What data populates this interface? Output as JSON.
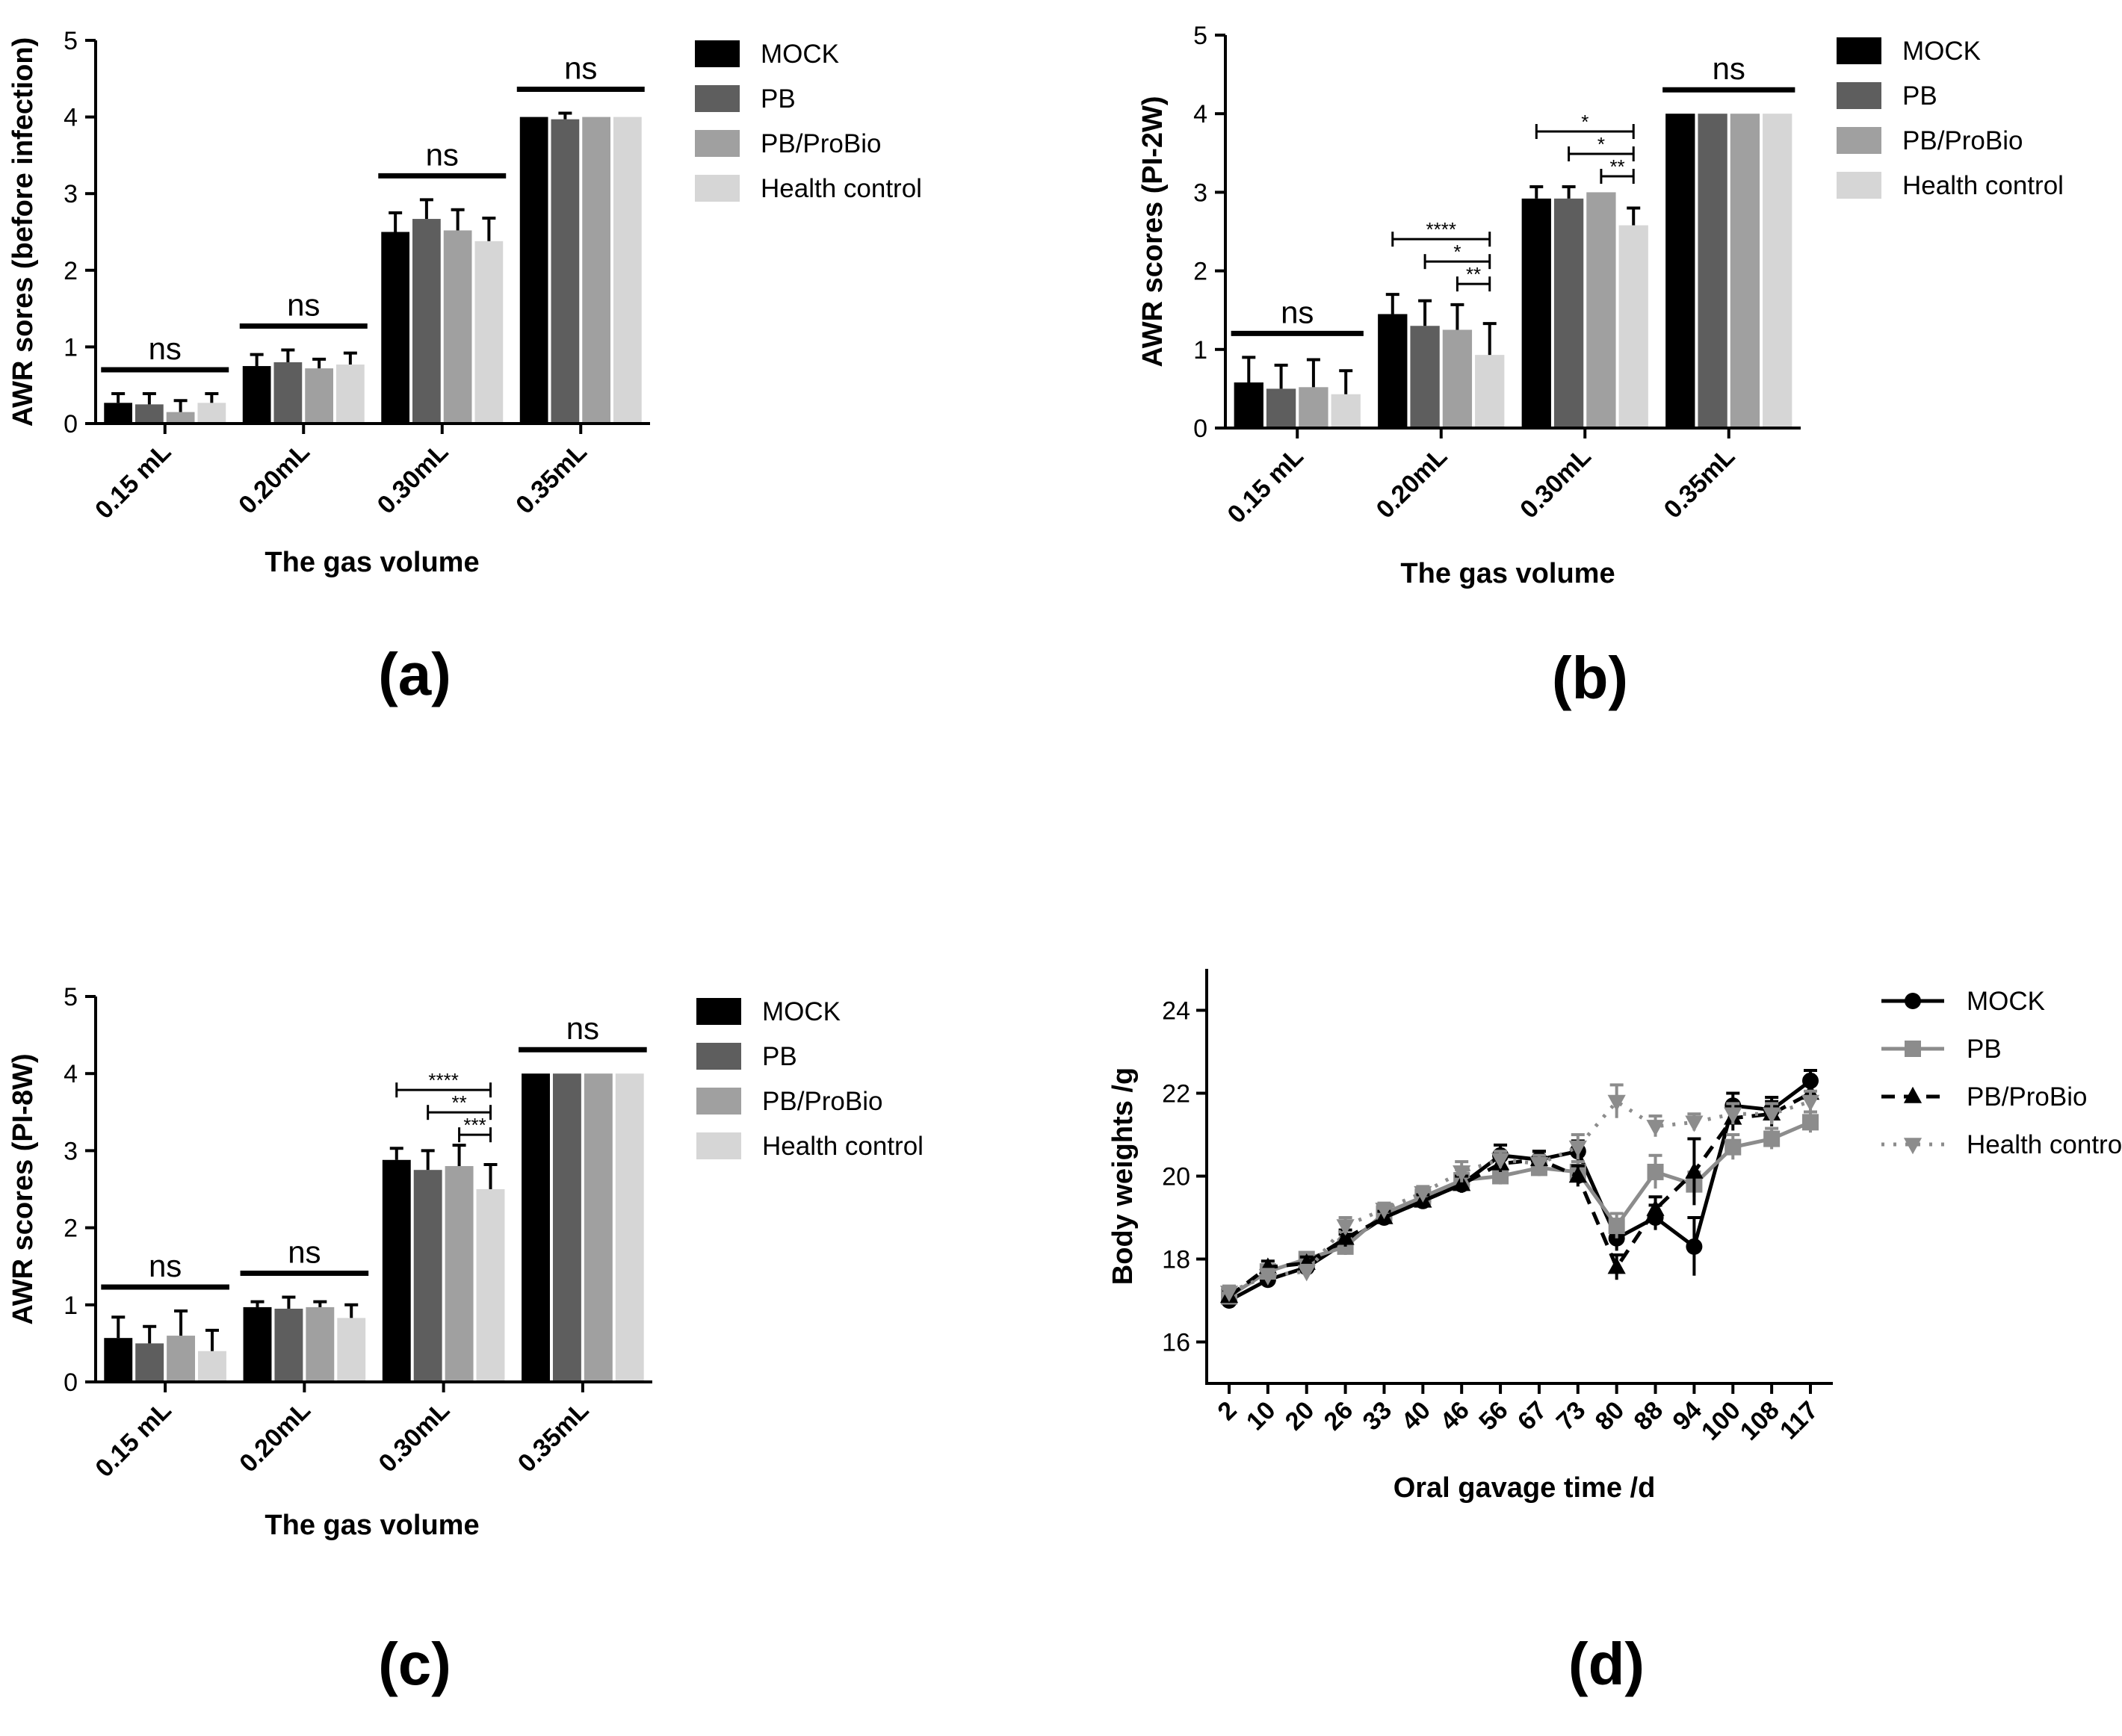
{
  "chart_data": [
    {
      "type": "bar",
      "panel_label": "(a)",
      "categories": [
        "0.15 mL",
        "0.20mL",
        "0.30mL",
        "0.35mL"
      ],
      "xlabel": "The gas volume",
      "ylabel": "AWR sores (before infection)",
      "ylim": [
        0,
        5
      ],
      "yticks": [
        "0",
        "1",
        "2",
        "3",
        "4",
        "5"
      ],
      "legend_position": "right",
      "series": [
        {
          "name": "MOCK",
          "color": "#000000",
          "values": [
            0.27,
            0.75,
            2.5,
            4.0
          ],
          "errors": [
            0.12,
            0.15,
            0.25,
            0.0
          ]
        },
        {
          "name": "PB",
          "color": "#5e5e5e",
          "values": [
            0.25,
            0.8,
            2.67,
            3.97
          ],
          "errors": [
            0.14,
            0.16,
            0.25,
            0.08
          ]
        },
        {
          "name": "PB/ProBio",
          "color": "#a0a0a0",
          "values": [
            0.15,
            0.72,
            2.52,
            4.0
          ],
          "errors": [
            0.15,
            0.12,
            0.27,
            0.0
          ]
        },
        {
          "name": "Health control",
          "color": "#d6d6d6",
          "values": [
            0.27,
            0.77,
            2.38,
            4.0
          ],
          "errors": [
            0.12,
            0.15,
            0.3,
            0.0
          ]
        }
      ],
      "annotations": [
        {
          "text": "ns",
          "group": 0
        },
        {
          "text": "ns",
          "group": 1
        },
        {
          "text": "ns",
          "group": 2
        },
        {
          "text": "ns",
          "group": 3
        }
      ]
    },
    {
      "type": "bar",
      "panel_label": "(b)",
      "categories": [
        "0.15 mL",
        "0.20mL",
        "0.30mL",
        "0.35mL"
      ],
      "xlabel": "The gas volume",
      "ylabel": "AWR scores (PI-2W)",
      "ylim": [
        0,
        5
      ],
      "yticks": [
        "0",
        "1",
        "2",
        "3",
        "4",
        "5"
      ],
      "legend_position": "right",
      "series": [
        {
          "name": "MOCK",
          "color": "#000000",
          "values": [
            0.58,
            1.45,
            2.92,
            4.0
          ],
          "errors": [
            0.32,
            0.25,
            0.15,
            0.0
          ]
        },
        {
          "name": "PB",
          "color": "#5e5e5e",
          "values": [
            0.5,
            1.3,
            2.92,
            4.0
          ],
          "errors": [
            0.3,
            0.32,
            0.15,
            0.0
          ]
        },
        {
          "name": "PB/ProBio",
          "color": "#a0a0a0",
          "values": [
            0.52,
            1.25,
            3.0,
            4.0
          ],
          "errors": [
            0.35,
            0.32,
            0.0,
            0.0
          ]
        },
        {
          "name": "Health control",
          "color": "#d6d6d6",
          "values": [
            0.43,
            0.93,
            2.58,
            4.0
          ],
          "errors": [
            0.3,
            0.4,
            0.22,
            0.0
          ]
        }
      ],
      "annotations": [
        {
          "text": "ns",
          "group": 0
        },
        {
          "text": "****",
          "group": 1,
          "from_series": 0,
          "to_series": 3
        },
        {
          "text": "*",
          "group": 1,
          "from_series": 1,
          "to_series": 3
        },
        {
          "text": "**",
          "group": 1,
          "from_series": 2,
          "to_series": 3
        },
        {
          "text": "*",
          "group": 2,
          "from_series": 0,
          "to_series": 3
        },
        {
          "text": "*",
          "group": 2,
          "from_series": 1,
          "to_series": 3
        },
        {
          "text": "**",
          "group": 2,
          "from_series": 2,
          "to_series": 3
        },
        {
          "text": "ns",
          "group": 3
        }
      ]
    },
    {
      "type": "bar",
      "panel_label": "(c)",
      "categories": [
        "0.15 mL",
        "0.20mL",
        "0.30mL",
        "0.35mL"
      ],
      "xlabel": "The gas volume",
      "ylabel": "AWR scores (PI-8W)",
      "ylim": [
        0,
        5
      ],
      "yticks": [
        "0",
        "1",
        "2",
        "3",
        "4",
        "5"
      ],
      "legend_position": "right",
      "series": [
        {
          "name": "MOCK",
          "color": "#000000",
          "values": [
            0.57,
            0.97,
            2.88,
            4.0
          ],
          "errors": [
            0.27,
            0.07,
            0.15,
            0.0
          ]
        },
        {
          "name": "PB",
          "color": "#5e5e5e",
          "values": [
            0.5,
            0.95,
            2.75,
            4.0
          ],
          "errors": [
            0.22,
            0.15,
            0.25,
            0.0
          ]
        },
        {
          "name": "PB/ProBio",
          "color": "#a0a0a0",
          "values": [
            0.6,
            0.97,
            2.8,
            4.0
          ],
          "errors": [
            0.32,
            0.07,
            0.27,
            0.0
          ]
        },
        {
          "name": "Health control",
          "color": "#d6d6d6",
          "values": [
            0.4,
            0.83,
            2.5,
            4.0
          ],
          "errors": [
            0.27,
            0.17,
            0.32,
            0.0
          ]
        }
      ],
      "annotations": [
        {
          "text": "ns",
          "group": 0
        },
        {
          "text": "ns",
          "group": 1
        },
        {
          "text": "****",
          "group": 2,
          "from_series": 0,
          "to_series": 3
        },
        {
          "text": "**",
          "group": 2,
          "from_series": 1,
          "to_series": 3
        },
        {
          "text": "***",
          "group": 2,
          "from_series": 2,
          "to_series": 3
        },
        {
          "text": "ns",
          "group": 3
        }
      ]
    },
    {
      "type": "line",
      "panel_label": "(d)",
      "xlabel": "Oral gavage time /d",
      "ylabel": "Body weights /g",
      "x": [
        "2",
        "10",
        "20",
        "26",
        "33",
        "40",
        "46",
        "56",
        "67",
        "73",
        "80",
        "88",
        "94",
        "100",
        "108",
        "117"
      ],
      "ylim": [
        15,
        25
      ],
      "yticks": [
        "16",
        "18",
        "20",
        "22",
        "24"
      ],
      "legend_position": "right",
      "series": [
        {
          "name": "MOCK",
          "color": "#000000",
          "dash": "solid",
          "marker": "circle",
          "values": [
            17.0,
            17.5,
            17.8,
            18.4,
            19.0,
            19.4,
            19.8,
            20.5,
            20.4,
            20.6,
            18.5,
            19.0,
            18.3,
            21.7,
            21.6,
            22.3
          ],
          "errors": [
            0.15,
            0.15,
            0.15,
            0.2,
            0.15,
            0.15,
            0.2,
            0.25,
            0.2,
            0.25,
            0.3,
            0.3,
            0.7,
            0.3,
            0.3,
            0.25
          ]
        },
        {
          "name": "PB",
          "color": "#8c8c8c",
          "dash": "solid",
          "marker": "square",
          "values": [
            17.1,
            17.7,
            18.0,
            18.3,
            19.1,
            19.5,
            19.9,
            20.0,
            20.2,
            20.1,
            18.8,
            20.1,
            19.8,
            20.7,
            20.9,
            21.3
          ],
          "errors": [
            0.15,
            0.15,
            0.15,
            0.2,
            0.15,
            0.15,
            0.25,
            0.2,
            0.2,
            0.25,
            0.3,
            0.4,
            0.3,
            0.3,
            0.25,
            0.25
          ]
        },
        {
          "name": "PB/ProBio",
          "color": "#000000",
          "dash": "dashed",
          "marker": "triangle-up",
          "values": [
            17.1,
            17.8,
            17.9,
            18.5,
            19.0,
            19.4,
            19.8,
            20.3,
            20.4,
            20.0,
            17.8,
            19.2,
            20.1,
            21.4,
            21.5,
            22.0
          ],
          "errors": [
            0.15,
            0.15,
            0.15,
            0.2,
            0.15,
            0.15,
            0.2,
            0.2,
            0.2,
            0.25,
            0.3,
            0.3,
            0.8,
            0.3,
            0.3,
            0.25
          ]
        },
        {
          "name": "Health control",
          "color": "#8c8c8c",
          "dash": "dotted",
          "marker": "triangle-down",
          "values": [
            17.2,
            17.6,
            17.7,
            18.8,
            19.2,
            19.6,
            20.1,
            20.4,
            20.3,
            20.7,
            21.8,
            21.2,
            21.3,
            21.5,
            21.5,
            21.8
          ],
          "errors": [
            0.15,
            0.15,
            0.15,
            0.2,
            0.15,
            0.15,
            0.25,
            0.2,
            0.2,
            0.3,
            0.4,
            0.25,
            0.2,
            0.25,
            0.25,
            0.25
          ]
        }
      ]
    }
  ]
}
